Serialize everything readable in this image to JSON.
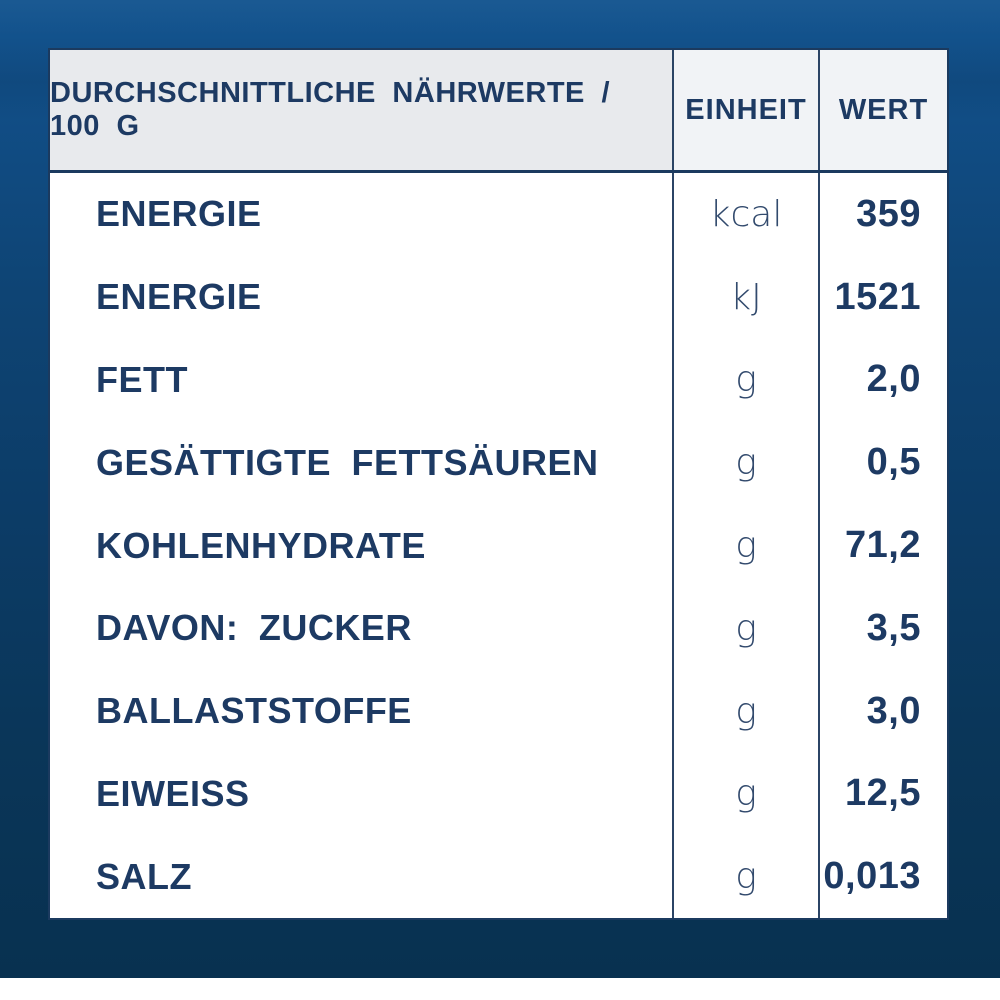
{
  "page": {
    "colors": {
      "background_top": "#13548f",
      "background_bottom": "#083150",
      "card_background": "#ffffff",
      "header_cell_background": "#e8eaed",
      "header_subcell_background": "#f1f3f6",
      "text_navy": "#1d3a63",
      "divider_navy": "#2b4465"
    }
  },
  "table": {
    "header": {
      "nutrients": "DURCHSCHNITTLICHE NÄHRWERTE / 100 G",
      "unit": "EINHEIT",
      "value": "WERT"
    },
    "rows": [
      {
        "label": "ENERGIE",
        "unit": "kcal",
        "value": "359"
      },
      {
        "label": "ENERGIE",
        "unit": "kJ",
        "value": "1521"
      },
      {
        "label": "FETT",
        "unit": "g",
        "value": "2,0"
      },
      {
        "label": "GESÄTTIGTE FETTSÄUREN",
        "unit": "g",
        "value": "0,5"
      },
      {
        "label": "KOHLENHYDRATE",
        "unit": "g",
        "value": "71,2"
      },
      {
        "label": "DAVON: ZUCKER",
        "unit": "g",
        "value": "3,5"
      },
      {
        "label": "BALLASTSTOFFE",
        "unit": "g",
        "value": "3,0"
      },
      {
        "label": "EIWEISS",
        "unit": "g",
        "value": "12,5"
      },
      {
        "label": "SALZ",
        "unit": "g",
        "value": "0,013"
      }
    ]
  }
}
